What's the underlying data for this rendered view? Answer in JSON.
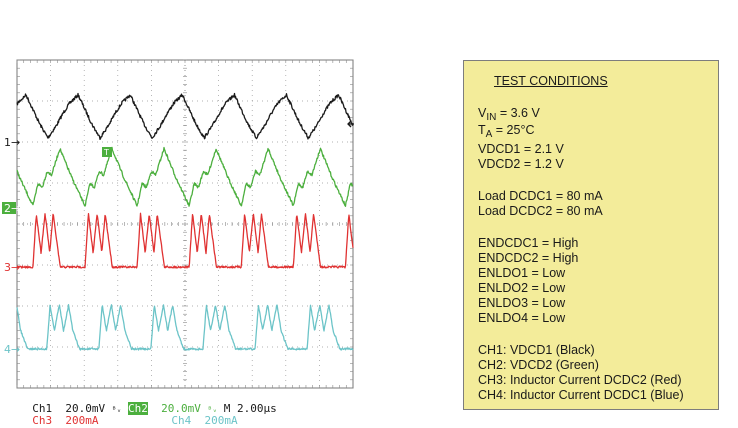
{
  "scope": {
    "channels": [
      {
        "id": "CH1",
        "marker": "1",
        "color": "#1a1a1a",
        "scale": "20.0mV"
      },
      {
        "id": "CH2",
        "marker": "2",
        "color": "#4caf3e",
        "scale": "20.0mV"
      },
      {
        "id": "CH3",
        "marker": "3",
        "color": "#e03232",
        "scale": "200mA"
      },
      {
        "id": "CH4",
        "marker": "4",
        "color": "#6cc4c8",
        "scale": "200mA"
      }
    ],
    "legend": {
      "ch1_label": "Ch1",
      "ch1_scale": "20.0mV",
      "bw1": "ᴮᵥ",
      "ch2_label": "Ch2",
      "ch2_scale": "20.0mV",
      "bw2": "ᴮᵥ",
      "timebase": "M 2.00µs",
      "ch3_label": "Ch3",
      "ch3_scale": "200mA",
      "ch4_label": "Ch4",
      "ch4_scale": "200mA"
    },
    "trigger_marker": "T"
  },
  "chart_data": {
    "type": "line",
    "x_unit": "µs",
    "xlim": [
      0,
      20
    ],
    "x_divisions": 10,
    "y_divisions": 8,
    "grid": true,
    "series": [
      {
        "name": "CH1",
        "scale": "20.0mV/div",
        "period_us": 3.1,
        "phase_us": 1.84,
        "points": [
          [
            0,
            2
          ],
          [
            0.5,
            8
          ],
          [
            0.9,
            14
          ],
          [
            1.3,
            19
          ],
          [
            1.8,
            23
          ],
          [
            2.2,
            16
          ],
          [
            2.6,
            9
          ],
          [
            3.1,
            2
          ]
        ]
      },
      {
        "name": "CH2",
        "scale": "20.0mV/div",
        "period_us": 3.1,
        "phase_us": 0.95,
        "points": [
          [
            0,
            1
          ],
          [
            0.3,
            12
          ],
          [
            0.55,
            10
          ],
          [
            0.85,
            18
          ],
          [
            1.1,
            16
          ],
          [
            1.6,
            29
          ],
          [
            2.3,
            15
          ],
          [
            3.1,
            1
          ]
        ]
      },
      {
        "name": "CH3",
        "scale": "200mA/div",
        "period_us": 3.1,
        "phase_us": 0.95,
        "points": [
          [
            0,
            0
          ],
          [
            0.2,
            260
          ],
          [
            0.48,
            70
          ],
          [
            0.72,
            260
          ],
          [
            1.0,
            70
          ],
          [
            1.2,
            260
          ],
          [
            1.62,
            0
          ],
          [
            3.1,
            0
          ]
        ]
      },
      {
        "name": "CH4",
        "scale": "200mA/div",
        "period_us": 3.1,
        "phase_us": 1.77,
        "points": [
          [
            0,
            0
          ],
          [
            0.2,
            215
          ],
          [
            0.45,
            90
          ],
          [
            0.75,
            215
          ],
          [
            1.0,
            90
          ],
          [
            1.3,
            215
          ],
          [
            1.55,
            90
          ],
          [
            1.95,
            0
          ],
          [
            3.1,
            0
          ]
        ]
      }
    ]
  },
  "test_conditions": {
    "title": "TEST CONDITIONS",
    "vin": {
      "main": "V",
      "sub": "IN",
      "rest": " = 3.6 V"
    },
    "ta": {
      "main": "T",
      "sub": "A",
      "rest": " = 25°C"
    },
    "lines": [
      "VDCD1 = 2.1 V",
      "VDCD2 = 1.2 V",
      "",
      "Load DCDC1 = 80 mA",
      "Load DCDC2 = 80 mA",
      "",
      "ENDCDC1 = High",
      "ENDCDC2 = High",
      "ENLDO1 = Low",
      "ENLDO2 = Low",
      "ENLDO3 = Low",
      "ENLDO4 = Low",
      "",
      "CH1: VDCD1 (Black)",
      "CH2: VDCD2 (Green)",
      "CH3: Inductor Current DCDC2 (Red)",
      "CH4: Inductor Current DCDC1 (Blue)"
    ]
  }
}
